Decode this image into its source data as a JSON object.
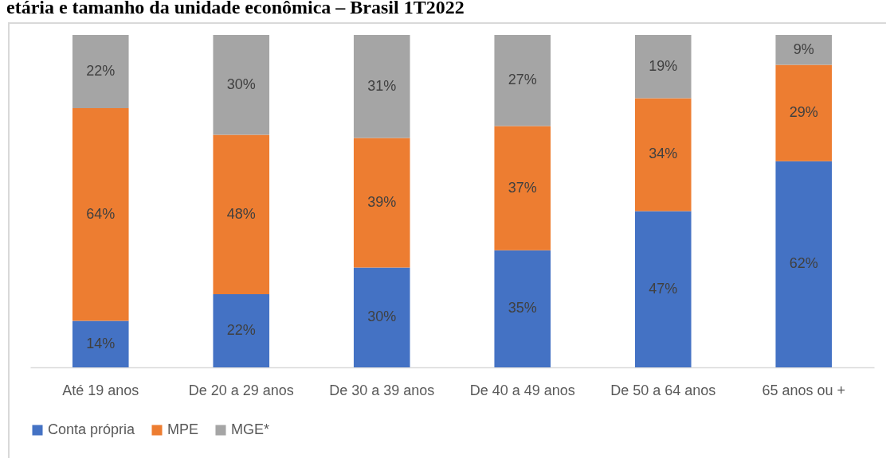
{
  "chart_data": {
    "type": "bar",
    "title": "etária e tamanho da unidade econômica – Brasil 1T2022",
    "categories": [
      "Até 19 anos",
      "De 20 a 29 anos",
      "De 30 a 39 anos",
      "De 40 a 49 anos",
      "De 50 a 64 anos",
      "65 anos ou +"
    ],
    "stacked": true,
    "legend": "bottom",
    "tick_labels": "x",
    "series": [
      {
        "name": "Conta própria",
        "color": "#4472c4",
        "values": [
          14,
          22,
          30,
          35.2,
          47,
          62
        ],
        "value_labels": [
          "14%",
          "22%",
          "30%",
          "35%",
          "47%",
          "62%"
        ]
      },
      {
        "name": "MPE",
        "color": "#ed7d31",
        "values": [
          64,
          48,
          39,
          37.4,
          34,
          29
        ],
        "value_labels": [
          "64%",
          "48%",
          "39%",
          "37%",
          "34%",
          "29%"
        ]
      },
      {
        "name": "MGE*",
        "color": "#a5a5a5",
        "values": [
          22,
          30,
          31,
          27.4,
          19,
          9
        ],
        "value_labels": [
          "22%",
          "30%",
          "31%",
          "27%",
          "19%",
          "9%"
        ]
      }
    ]
  }
}
